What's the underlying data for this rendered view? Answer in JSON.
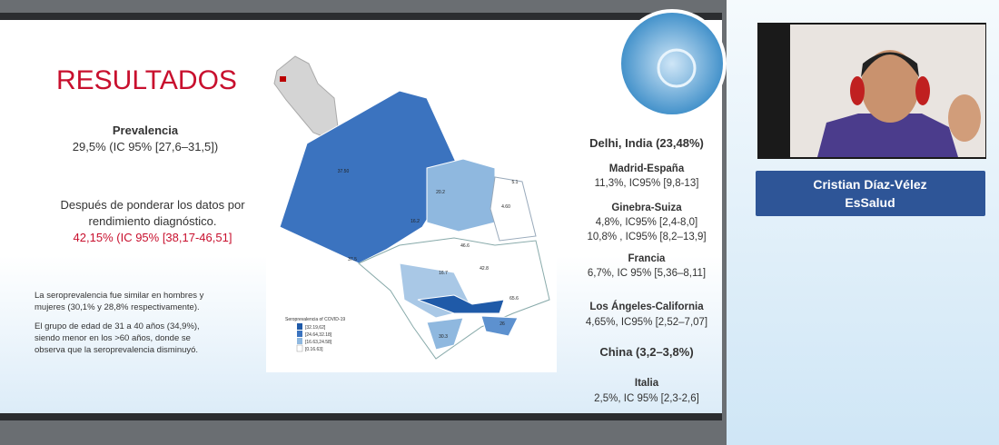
{
  "slide": {
    "title": "RESULTADOS",
    "prevalence": {
      "heading": "Prevalencia",
      "value": "29,5% (IC 95% [27,6–31,5])"
    },
    "weighted": {
      "lines": [
        "Después de ponderar los datos por",
        "rendimiento diagnóstico."
      ],
      "value": "42,15% (IC 95% [38,17-46,51]"
    },
    "notes": [
      [
        "La seroprevalencia fue similar en hombres y",
        "mujeres (30,1% y 28,8% respectivamente)."
      ],
      [
        "El grupo de edad de 31 a 40 años (34,9%),",
        "siendo menor en los >60 años, donde se",
        "observa que la seroprevalencia disminuyó."
      ]
    ],
    "map": {
      "legend_title": "Seroprevalencia of COVID-19",
      "legend_items": [
        "[32.19,62]",
        "[24.64,32.18]",
        "[16.63,24.58]",
        "[0.16.63]"
      ],
      "region_labels": [
        "37.50",
        "20.2",
        "5.1",
        "4.60",
        "16.2",
        "37.5",
        "46.6",
        "42.8",
        "16.7",
        "65.6",
        "26",
        "30.3"
      ]
    },
    "comparisons": [
      {
        "place": "Delhi, India (23,48%)",
        "lines": []
      },
      {
        "place": "Madrid-España",
        "lines": [
          "11,3%, IC95% [9,8-13]"
        ]
      },
      {
        "place": "Ginebra-Suiza",
        "lines": [
          "4,8%, IC95% [2,4-8,0]",
          "10,8% , IC95% [8,2–13,9]"
        ]
      },
      {
        "place": "Francia",
        "lines": [
          "6,7%, IC 95% [5,36–8,11]"
        ]
      },
      {
        "place": "Los Ángeles-California",
        "lines": [
          "4,65%, IC95% [2,52–7,07]"
        ]
      },
      {
        "place": "China (3,2–3,8%)",
        "lines": []
      },
      {
        "place": "Italia",
        "lines": [
          "2,5%, IC 95% [2,3-2,6]"
        ]
      }
    ]
  },
  "speaker": {
    "name": "Cristian Díaz-Vélez",
    "organization": "EsSalud"
  }
}
